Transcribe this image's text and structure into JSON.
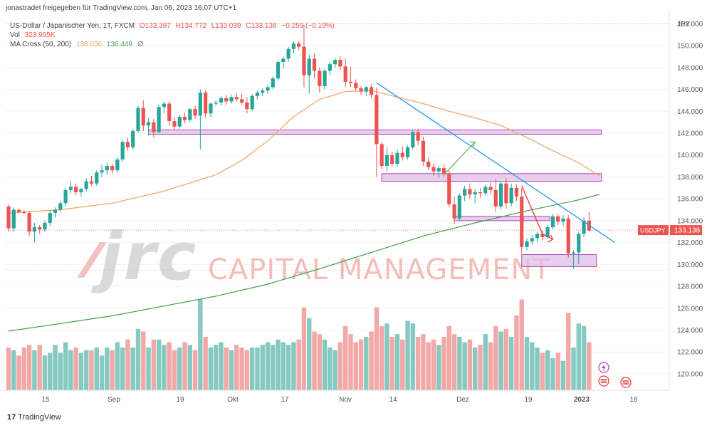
{
  "header": {
    "published_by": "jonastradet freigegeben für TradingView.com, Jan 06, 2023 16:07 UTC+1",
    "symbol_line": {
      "name": "US-Dollar / Japanischer Yen, 1T, FXCM",
      "open": "O133.397",
      "high": "H134.772",
      "low": "L133.039",
      "close": "C133.138",
      "change": "−0.259 (−0.19%)"
    },
    "volume_line": {
      "label": "Vol",
      "value": "323.995K"
    },
    "ma_line": {
      "label": "MA Cross (50, 200)",
      "ma50": "138.036",
      "ma200": "136.449",
      "extra": "∅"
    }
  },
  "watermark": {
    "logo": "jrc",
    "text": "CAPITAL MANAGEMENT"
  },
  "footer": {
    "brand": "TradingView"
  },
  "price_tag": {
    "symbol": "USDJPY",
    "value": "133.138"
  },
  "colors": {
    "up": "#26a69a",
    "down": "#ef5350",
    "vol_up": "#85c9c1",
    "vol_down": "#f1a8a6",
    "ma50": "#f5a25d",
    "ma200": "#43a047",
    "trendline": "#2196f3",
    "zone_fill": "#e1bee7",
    "zone_stroke": "#ab47bc",
    "arrow": "#66bb6a"
  },
  "chart_data": {
    "type": "candlestick",
    "currency_label": "JPY",
    "y_axis": {
      "min": 118.5,
      "max": 153,
      "ticks": [
        "120.000",
        "122.000",
        "124.000",
        "126.000",
        "128.000",
        "130.000",
        "132.000",
        "134.000",
        "136.000",
        "138.000",
        "140.000",
        "142.000",
        "144.000",
        "146.000",
        "148.000",
        "150.000",
        "152.000"
      ]
    },
    "x_axis": {
      "labels": [
        "15",
        "Sep",
        "19",
        "Okt",
        "17",
        "Nov",
        "14",
        "Dez",
        "19",
        "2023",
        "16"
      ]
    },
    "candles": [
      {
        "o": 135.3,
        "h": 135.5,
        "l": 133.0,
        "c": 133.3,
        "v": 1.6
      },
      {
        "o": 133.3,
        "h": 135.2,
        "l": 133.0,
        "c": 135.0,
        "v": 1.5
      },
      {
        "o": 135.0,
        "h": 135.1,
        "l": 134.7,
        "c": 134.8,
        "v": 1.3
      },
      {
        "o": 134.8,
        "h": 135.0,
        "l": 134.6,
        "c": 134.7,
        "v": 1.6
      },
      {
        "o": 134.7,
        "h": 134.9,
        "l": 132.6,
        "c": 133.0,
        "v": 1.7
      },
      {
        "o": 133.0,
        "h": 133.8,
        "l": 132.0,
        "c": 133.4,
        "v": 1.5
      },
      {
        "o": 133.4,
        "h": 133.6,
        "l": 132.8,
        "c": 133.2,
        "v": 1.7
      },
      {
        "o": 133.2,
        "h": 134.0,
        "l": 133.0,
        "c": 133.8,
        "v": 1.3
      },
      {
        "o": 133.8,
        "h": 135.0,
        "l": 133.5,
        "c": 134.7,
        "v": 1.4
      },
      {
        "o": 134.7,
        "h": 135.2,
        "l": 134.3,
        "c": 135.0,
        "v": 1.7
      },
      {
        "o": 135.0,
        "h": 135.8,
        "l": 134.8,
        "c": 135.6,
        "v": 1.4
      },
      {
        "o": 135.6,
        "h": 137.0,
        "l": 135.3,
        "c": 136.8,
        "v": 1.8
      },
      {
        "o": 136.8,
        "h": 137.6,
        "l": 136.5,
        "c": 137.1,
        "v": 1.5
      },
      {
        "o": 137.1,
        "h": 137.4,
        "l": 136.3,
        "c": 136.6,
        "v": 1.6
      },
      {
        "o": 136.6,
        "h": 137.0,
        "l": 136.2,
        "c": 136.9,
        "v": 1.4
      },
      {
        "o": 136.9,
        "h": 137.9,
        "l": 136.7,
        "c": 137.6,
        "v": 1.5
      },
      {
        "o": 137.6,
        "h": 138.1,
        "l": 137.2,
        "c": 137.4,
        "v": 1.5
      },
      {
        "o": 137.4,
        "h": 138.6,
        "l": 137.2,
        "c": 138.4,
        "v": 1.6
      },
      {
        "o": 138.4,
        "h": 139.1,
        "l": 138.0,
        "c": 138.6,
        "v": 1.3
      },
      {
        "o": 138.6,
        "h": 139.3,
        "l": 138.2,
        "c": 139.0,
        "v": 1.6
      },
      {
        "o": 139.0,
        "h": 139.2,
        "l": 138.3,
        "c": 138.6,
        "v": 1.5
      },
      {
        "o": 138.6,
        "h": 139.8,
        "l": 138.4,
        "c": 139.6,
        "v": 1.8
      },
      {
        "o": 139.6,
        "h": 141.4,
        "l": 139.4,
        "c": 141.2,
        "v": 1.6
      },
      {
        "o": 141.2,
        "h": 141.6,
        "l": 140.4,
        "c": 140.7,
        "v": 1.9
      },
      {
        "o": 140.7,
        "h": 142.4,
        "l": 140.5,
        "c": 142.2,
        "v": 1.6
      },
      {
        "o": 142.2,
        "h": 144.5,
        "l": 142.0,
        "c": 144.3,
        "v": 2.3
      },
      {
        "o": 144.3,
        "h": 145.0,
        "l": 142.2,
        "c": 142.7,
        "v": 2.2
      },
      {
        "o": 142.7,
        "h": 143.4,
        "l": 141.8,
        "c": 143.0,
        "v": 1.6
      },
      {
        "o": 143.0,
        "h": 143.3,
        "l": 141.6,
        "c": 142.1,
        "v": 1.9
      },
      {
        "o": 142.1,
        "h": 144.6,
        "l": 142.0,
        "c": 144.4,
        "v": 1.9
      },
      {
        "o": 144.4,
        "h": 144.9,
        "l": 143.8,
        "c": 144.7,
        "v": 1.7
      },
      {
        "o": 144.7,
        "h": 144.9,
        "l": 142.7,
        "c": 143.1,
        "v": 1.8
      },
      {
        "o": 143.1,
        "h": 143.5,
        "l": 142.3,
        "c": 142.6,
        "v": 1.5
      },
      {
        "o": 142.6,
        "h": 143.7,
        "l": 142.4,
        "c": 143.5,
        "v": 1.6
      },
      {
        "o": 143.5,
        "h": 143.9,
        "l": 142.9,
        "c": 143.2,
        "v": 1.8
      },
      {
        "o": 143.2,
        "h": 144.3,
        "l": 143.0,
        "c": 144.2,
        "v": 1.7
      },
      {
        "o": 144.2,
        "h": 144.5,
        "l": 143.3,
        "c": 143.6,
        "v": 1.5
      },
      {
        "o": 143.6,
        "h": 146.0,
        "l": 140.5,
        "c": 145.7,
        "v": 3.4
      },
      {
        "o": 145.7,
        "h": 145.9,
        "l": 143.4,
        "c": 143.8,
        "v": 2.0
      },
      {
        "o": 143.8,
        "h": 144.8,
        "l": 143.5,
        "c": 144.7,
        "v": 1.6
      },
      {
        "o": 144.7,
        "h": 145.0,
        "l": 144.5,
        "c": 144.8,
        "v": 1.7
      },
      {
        "o": 144.8,
        "h": 145.4,
        "l": 144.5,
        "c": 145.2,
        "v": 1.8
      },
      {
        "o": 145.2,
        "h": 145.5,
        "l": 144.6,
        "c": 144.9,
        "v": 1.6
      },
      {
        "o": 144.9,
        "h": 145.5,
        "l": 144.7,
        "c": 145.3,
        "v": 1.5
      },
      {
        "o": 145.3,
        "h": 145.6,
        "l": 144.9,
        "c": 145.1,
        "v": 1.7
      },
      {
        "o": 145.1,
        "h": 145.6,
        "l": 144.6,
        "c": 144.8,
        "v": 1.6
      },
      {
        "o": 144.8,
        "h": 145.3,
        "l": 143.8,
        "c": 144.2,
        "v": 1.5
      },
      {
        "o": 144.2,
        "h": 145.6,
        "l": 144.0,
        "c": 145.4,
        "v": 1.6
      },
      {
        "o": 145.4,
        "h": 145.9,
        "l": 145.1,
        "c": 145.7,
        "v": 1.6
      },
      {
        "o": 145.7,
        "h": 146.1,
        "l": 145.4,
        "c": 145.9,
        "v": 1.7
      },
      {
        "o": 145.9,
        "h": 146.4,
        "l": 145.6,
        "c": 146.2,
        "v": 1.8
      },
      {
        "o": 146.2,
        "h": 147.2,
        "l": 146.0,
        "c": 147.0,
        "v": 1.7
      },
      {
        "o": 147.0,
        "h": 148.7,
        "l": 146.8,
        "c": 148.5,
        "v": 1.9
      },
      {
        "o": 148.5,
        "h": 149.0,
        "l": 147.9,
        "c": 148.8,
        "v": 1.8
      },
      {
        "o": 148.8,
        "h": 149.9,
        "l": 148.5,
        "c": 149.7,
        "v": 1.7
      },
      {
        "o": 149.7,
        "h": 150.4,
        "l": 149.3,
        "c": 150.2,
        "v": 1.8
      },
      {
        "o": 150.2,
        "h": 150.4,
        "l": 149.6,
        "c": 149.9,
        "v": 1.9
      },
      {
        "o": 149.9,
        "h": 151.9,
        "l": 146.2,
        "c": 147.3,
        "v": 3.1
      },
      {
        "o": 147.3,
        "h": 149.2,
        "l": 145.6,
        "c": 148.8,
        "v": 2.7
      },
      {
        "o": 148.8,
        "h": 149.3,
        "l": 147.0,
        "c": 147.7,
        "v": 2.2
      },
      {
        "o": 147.7,
        "h": 148.0,
        "l": 145.7,
        "c": 146.3,
        "v": 2.1
      },
      {
        "o": 146.3,
        "h": 147.9,
        "l": 146.0,
        "c": 147.7,
        "v": 1.9
      },
      {
        "o": 147.7,
        "h": 148.5,
        "l": 147.3,
        "c": 148.3,
        "v": 1.6
      },
      {
        "o": 148.3,
        "h": 148.9,
        "l": 148.0,
        "c": 148.7,
        "v": 1.5
      },
      {
        "o": 148.7,
        "h": 149.0,
        "l": 147.8,
        "c": 148.1,
        "v": 1.8
      },
      {
        "o": 148.1,
        "h": 148.8,
        "l": 146.2,
        "c": 146.7,
        "v": 2.4
      },
      {
        "o": 146.7,
        "h": 148.1,
        "l": 146.2,
        "c": 146.6,
        "v": 2.1
      },
      {
        "o": 146.6,
        "h": 146.9,
        "l": 145.9,
        "c": 146.1,
        "v": 1.8
      },
      {
        "o": 146.1,
        "h": 146.3,
        "l": 145.5,
        "c": 145.8,
        "v": 1.9
      },
      {
        "o": 145.8,
        "h": 146.3,
        "l": 145.4,
        "c": 146.2,
        "v": 2.0
      },
      {
        "o": 146.2,
        "h": 146.5,
        "l": 145.2,
        "c": 145.5,
        "v": 2.2
      },
      {
        "o": 145.5,
        "h": 146.2,
        "l": 138.0,
        "c": 141.0,
        "v": 3.1
      },
      {
        "o": 141.0,
        "h": 141.2,
        "l": 138.7,
        "c": 139.0,
        "v": 2.4
      },
      {
        "o": 139.0,
        "h": 140.7,
        "l": 138.5,
        "c": 140.0,
        "v": 2.5
      },
      {
        "o": 140.0,
        "h": 140.3,
        "l": 138.9,
        "c": 139.2,
        "v": 2.0
      },
      {
        "o": 139.2,
        "h": 140.5,
        "l": 138.9,
        "c": 140.2,
        "v": 2.1
      },
      {
        "o": 140.2,
        "h": 140.8,
        "l": 139.5,
        "c": 139.8,
        "v": 1.9
      },
      {
        "o": 139.8,
        "h": 140.9,
        "l": 139.6,
        "c": 140.7,
        "v": 2.6
      },
      {
        "o": 140.7,
        "h": 142.3,
        "l": 140.5,
        "c": 142.1,
        "v": 2.5
      },
      {
        "o": 142.1,
        "h": 142.4,
        "l": 140.9,
        "c": 141.3,
        "v": 2.0
      },
      {
        "o": 141.3,
        "h": 141.7,
        "l": 139.0,
        "c": 139.4,
        "v": 2.1
      },
      {
        "o": 139.4,
        "h": 139.8,
        "l": 138.6,
        "c": 138.9,
        "v": 1.8
      },
      {
        "o": 138.9,
        "h": 139.2,
        "l": 138.1,
        "c": 138.5,
        "v": 1.9
      },
      {
        "o": 138.5,
        "h": 139.0,
        "l": 137.9,
        "c": 138.8,
        "v": 1.7
      },
      {
        "o": 138.8,
        "h": 139.2,
        "l": 138.0,
        "c": 138.3,
        "v": 2.0
      },
      {
        "o": 138.3,
        "h": 138.6,
        "l": 135.2,
        "c": 135.5,
        "v": 2.4
      },
      {
        "o": 135.5,
        "h": 136.2,
        "l": 133.7,
        "c": 134.2,
        "v": 2.1
      },
      {
        "o": 134.2,
        "h": 136.5,
        "l": 134.0,
        "c": 136.3,
        "v": 2.0
      },
      {
        "o": 136.3,
        "h": 137.2,
        "l": 135.8,
        "c": 136.9,
        "v": 1.8
      },
      {
        "o": 136.9,
        "h": 137.4,
        "l": 136.0,
        "c": 136.4,
        "v": 1.9
      },
      {
        "o": 136.4,
        "h": 136.9,
        "l": 135.6,
        "c": 136.6,
        "v": 1.6
      },
      {
        "o": 136.6,
        "h": 137.0,
        "l": 136.1,
        "c": 136.5,
        "v": 1.7
      },
      {
        "o": 136.5,
        "h": 137.3,
        "l": 136.3,
        "c": 137.1,
        "v": 2.1
      },
      {
        "o": 137.1,
        "h": 137.5,
        "l": 136.4,
        "c": 136.8,
        "v": 1.8
      },
      {
        "o": 136.8,
        "h": 137.8,
        "l": 134.8,
        "c": 135.3,
        "v": 2.4
      },
      {
        "o": 135.3,
        "h": 137.6,
        "l": 135.0,
        "c": 137.4,
        "v": 2.2
      },
      {
        "o": 137.4,
        "h": 137.9,
        "l": 135.1,
        "c": 135.6,
        "v": 2.3
      },
      {
        "o": 135.6,
        "h": 137.4,
        "l": 135.3,
        "c": 137.0,
        "v": 2.0
      },
      {
        "o": 137.0,
        "h": 137.3,
        "l": 135.8,
        "c": 136.2,
        "v": 2.8
      },
      {
        "o": 136.2,
        "h": 137.0,
        "l": 131.0,
        "c": 131.6,
        "v": 3.4
      },
      {
        "o": 131.6,
        "h": 132.4,
        "l": 131.3,
        "c": 132.1,
        "v": 2.0
      },
      {
        "o": 132.1,
        "h": 132.7,
        "l": 131.8,
        "c": 132.4,
        "v": 1.8
      },
      {
        "o": 132.4,
        "h": 133.0,
        "l": 132.0,
        "c": 132.8,
        "v": 1.6
      },
      {
        "o": 132.8,
        "h": 133.1,
        "l": 132.2,
        "c": 132.5,
        "v": 1.4
      },
      {
        "o": 132.5,
        "h": 133.6,
        "l": 132.3,
        "c": 133.4,
        "v": 1.5
      },
      {
        "o": 133.4,
        "h": 134.6,
        "l": 133.2,
        "c": 134.4,
        "v": 1.2
      },
      {
        "o": 134.4,
        "h": 134.6,
        "l": 133.6,
        "c": 133.9,
        "v": 1.4
      },
      {
        "o": 133.9,
        "h": 134.5,
        "l": 133.5,
        "c": 134.2,
        "v": 1.1
      },
      {
        "o": 134.2,
        "h": 134.5,
        "l": 130.6,
        "c": 131.0,
        "v": 2.9
      },
      {
        "o": 131.0,
        "h": 131.3,
        "l": 129.6,
        "c": 131.1,
        "v": 1.6
      },
      {
        "o": 131.1,
        "h": 133.0,
        "l": 130.0,
        "c": 132.8,
        "v": 2.5
      },
      {
        "o": 132.8,
        "h": 134.3,
        "l": 132.5,
        "c": 134.0,
        "v": 2.4
      },
      {
        "o": 134.0,
        "h": 134.8,
        "l": 133.0,
        "c": 133.1,
        "v": 1.8
      }
    ],
    "ma50": [
      [
        0,
        134.7
      ],
      [
        10,
        135.0
      ],
      [
        20,
        135.6
      ],
      [
        30,
        136.7
      ],
      [
        40,
        138.2
      ],
      [
        45,
        139.5
      ],
      [
        50,
        141.3
      ],
      [
        55,
        143.5
      ],
      [
        60,
        145.1
      ],
      [
        65,
        145.8
      ],
      [
        70,
        145.9
      ],
      [
        75,
        145.3
      ],
      [
        80,
        144.7
      ],
      [
        85,
        144.0
      ],
      [
        90,
        143.4
      ],
      [
        95,
        142.7
      ],
      [
        100,
        141.6
      ],
      [
        105,
        140.4
      ],
      [
        110,
        139.3
      ],
      [
        114,
        138.1
      ]
    ],
    "ma200": [
      [
        0,
        123.9
      ],
      [
        10,
        124.6
      ],
      [
        20,
        125.3
      ],
      [
        30,
        126.2
      ],
      [
        40,
        127.1
      ],
      [
        50,
        128.2
      ],
      [
        60,
        129.6
      ],
      [
        70,
        131.1
      ],
      [
        80,
        132.6
      ],
      [
        90,
        133.8
      ],
      [
        100,
        134.9
      ],
      [
        110,
        135.9
      ],
      [
        114,
        136.4
      ]
    ],
    "zones": [
      {
        "x1": 27,
        "x2": 114,
        "y1": 141.9,
        "y2": 142.3
      },
      {
        "x1": 72,
        "x2": 114,
        "y1": 137.6,
        "y2": 138.3
      },
      {
        "x1": 86,
        "x2": 99,
        "y1": 134.0,
        "y2": 134.4
      },
      {
        "x1": 99,
        "x2": 104,
        "y1": 134.0,
        "y2": 134.4
      },
      {
        "x1": 99,
        "x2": 113,
        "y1": 129.8,
        "y2": 130.9
      }
    ],
    "trendline": {
      "x1": 71,
      "y1": 146.6,
      "x2": 117,
      "y2": 132.0
    },
    "green_arrow": {
      "x1": 84,
      "y1": 138.2,
      "x2": 90,
      "y2": 141.2
    },
    "red_arrow": [
      [
        99,
        137.2
      ],
      [
        103,
        132.8
      ],
      [
        105,
        132.3
      ]
    ],
    "last_price": 133.138
  }
}
